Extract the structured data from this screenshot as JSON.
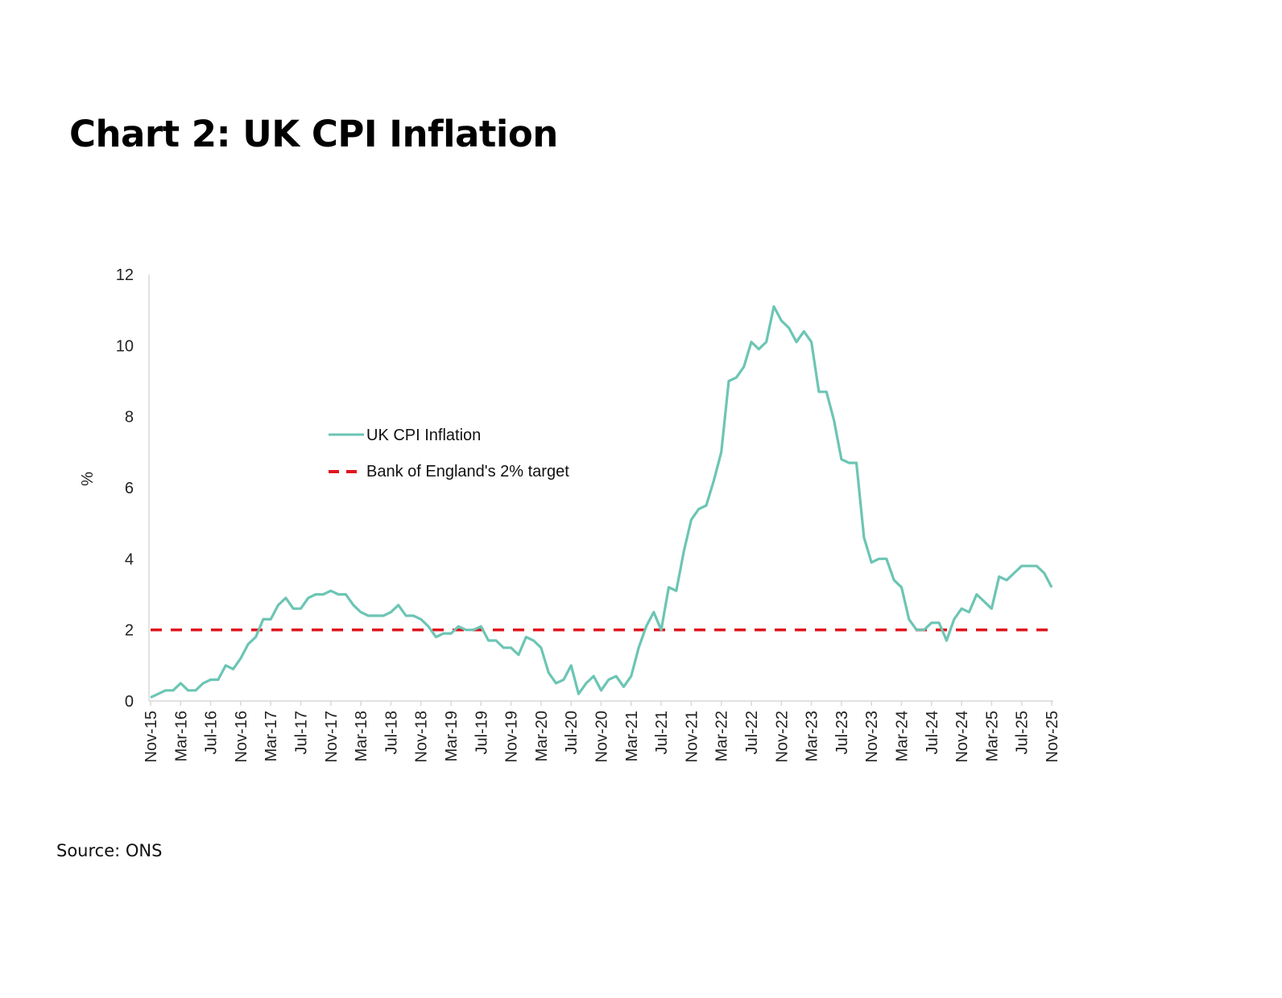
{
  "title": "Chart 2: UK CPI Inflation",
  "source": "Source: ONS",
  "chart_data": {
    "type": "line",
    "title": "Chart 2: UK CPI Inflation",
    "xlabel": "",
    "ylabel": "%",
    "ylim": [
      0,
      12
    ],
    "yticks": [
      0,
      2,
      4,
      6,
      8,
      10,
      12
    ],
    "grid": false,
    "legend_position": "center-left",
    "x_start": "Nov-15",
    "x_end": "Nov-25",
    "xtick_labels": [
      "Nov-15",
      "Mar-16",
      "Jul-16",
      "Nov-16",
      "Mar-17",
      "Jul-17",
      "Nov-17",
      "Mar-18",
      "Jul-18",
      "Nov-18",
      "Mar-19",
      "Jul-19",
      "Nov-19",
      "Mar-20",
      "Jul-20",
      "Nov-20",
      "Mar-21",
      "Jul-21",
      "Nov-21",
      "Mar-22",
      "Jul-22",
      "Nov-22",
      "Mar-23",
      "Jul-23",
      "Nov-23",
      "Mar-24",
      "Jul-24",
      "Nov-24",
      "Mar-25",
      "Jul-25",
      "Nov-25"
    ],
    "xtick_interval_months": 4,
    "series": [
      {
        "name": "UK CPI Inflation",
        "style": "solid",
        "color": "#6cc5b4",
        "values": [
          0.1,
          0.2,
          0.3,
          0.3,
          0.5,
          0.3,
          0.3,
          0.5,
          0.6,
          0.6,
          1.0,
          0.9,
          1.2,
          1.6,
          1.8,
          2.3,
          2.3,
          2.7,
          2.9,
          2.6,
          2.6,
          2.9,
          3.0,
          3.0,
          3.1,
          3.0,
          3.0,
          2.7,
          2.5,
          2.4,
          2.4,
          2.4,
          2.5,
          2.7,
          2.4,
          2.4,
          2.3,
          2.1,
          1.8,
          1.9,
          1.9,
          2.1,
          2.0,
          2.0,
          2.1,
          1.7,
          1.7,
          1.5,
          1.5,
          1.3,
          1.8,
          1.7,
          1.5,
          0.8,
          0.5,
          0.6,
          1.0,
          0.2,
          0.5,
          0.7,
          0.3,
          0.6,
          0.7,
          0.4,
          0.7,
          1.5,
          2.1,
          2.5,
          2.0,
          3.2,
          3.1,
          4.2,
          5.1,
          5.4,
          5.5,
          6.2,
          7.0,
          9.0,
          9.1,
          9.4,
          10.1,
          9.9,
          10.1,
          11.1,
          10.7,
          10.5,
          10.1,
          10.4,
          10.1,
          8.7,
          8.7,
          7.9,
          6.8,
          6.7,
          6.7,
          4.6,
          3.9,
          4.0,
          4.0,
          3.4,
          3.2,
          2.3,
          2.0,
          2.0,
          2.2,
          2.2,
          1.7,
          2.3,
          2.6,
          2.5,
          3.0,
          2.8,
          2.6,
          3.5,
          3.4,
          3.6,
          3.8,
          3.8,
          3.8,
          3.6,
          3.2
        ]
      },
      {
        "name": "Bank of England's 2% target",
        "style": "dashed",
        "color": "#e0141e",
        "constant": 2
      }
    ]
  }
}
